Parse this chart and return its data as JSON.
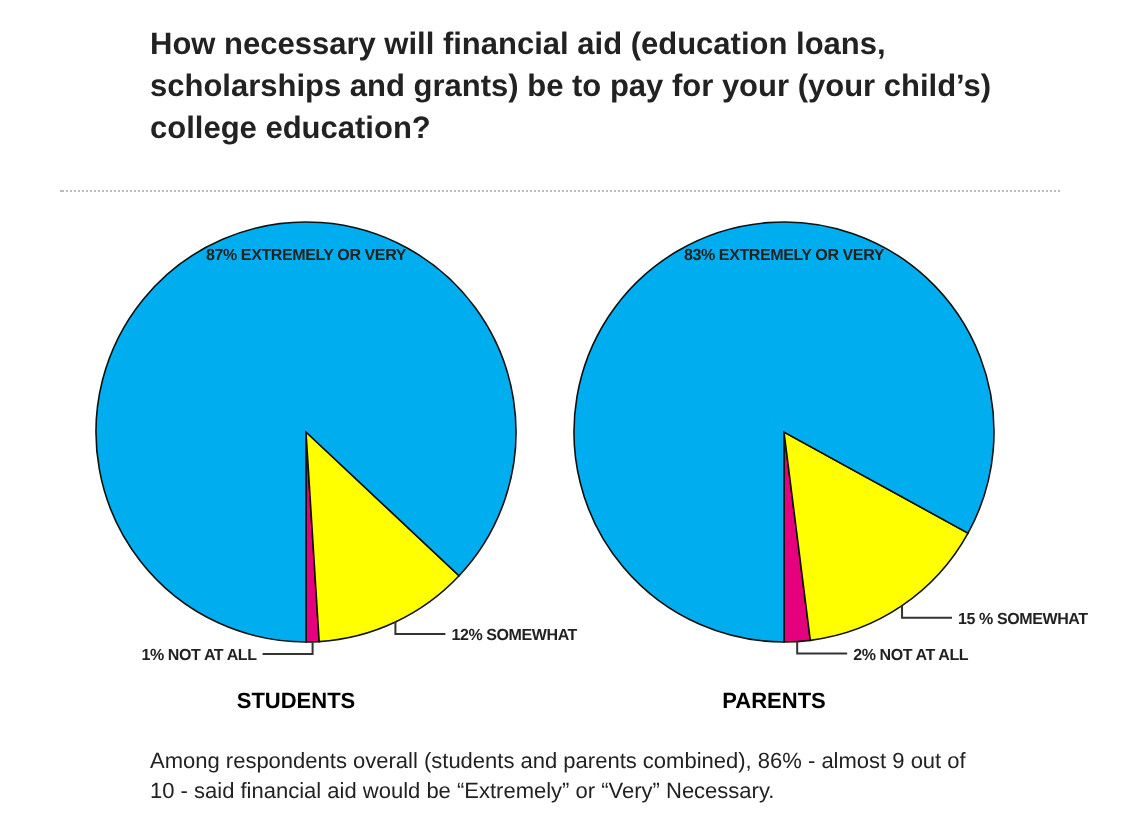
{
  "chart_data": [
    {
      "type": "pie",
      "title": "How necessary will financial aid (education loans, scholarships and grants) be to pay for your (your child’s) college education?",
      "xlabel": "STUDENTS",
      "categories": [
        "NOT AT ALL",
        "SOMEWHAT",
        "EXTREMELY OR VERY"
      ],
      "values": [
        1,
        12,
        87
      ],
      "value_labels": [
        "1%",
        "12%",
        "87%"
      ],
      "colors": [
        "#e5007d",
        "#ffff00",
        "#00aeef"
      ],
      "annotations": [
        "Among respondents overall (students and parents combined), 86% - almost 9 out of 10 - said financial aid would be “Extremely” or “Very” Necessary."
      ]
    },
    {
      "type": "pie",
      "xlabel": "PARENTS",
      "categories": [
        "NOT AT ALL",
        "SOMEWHAT",
        "EXTREMELY OR VERY"
      ],
      "values": [
        2,
        15,
        83
      ],
      "value_labels": [
        "2%",
        "15 %",
        "83%"
      ],
      "colors": [
        "#e5007d",
        "#ffff00",
        "#00aeef"
      ]
    }
  ]
}
